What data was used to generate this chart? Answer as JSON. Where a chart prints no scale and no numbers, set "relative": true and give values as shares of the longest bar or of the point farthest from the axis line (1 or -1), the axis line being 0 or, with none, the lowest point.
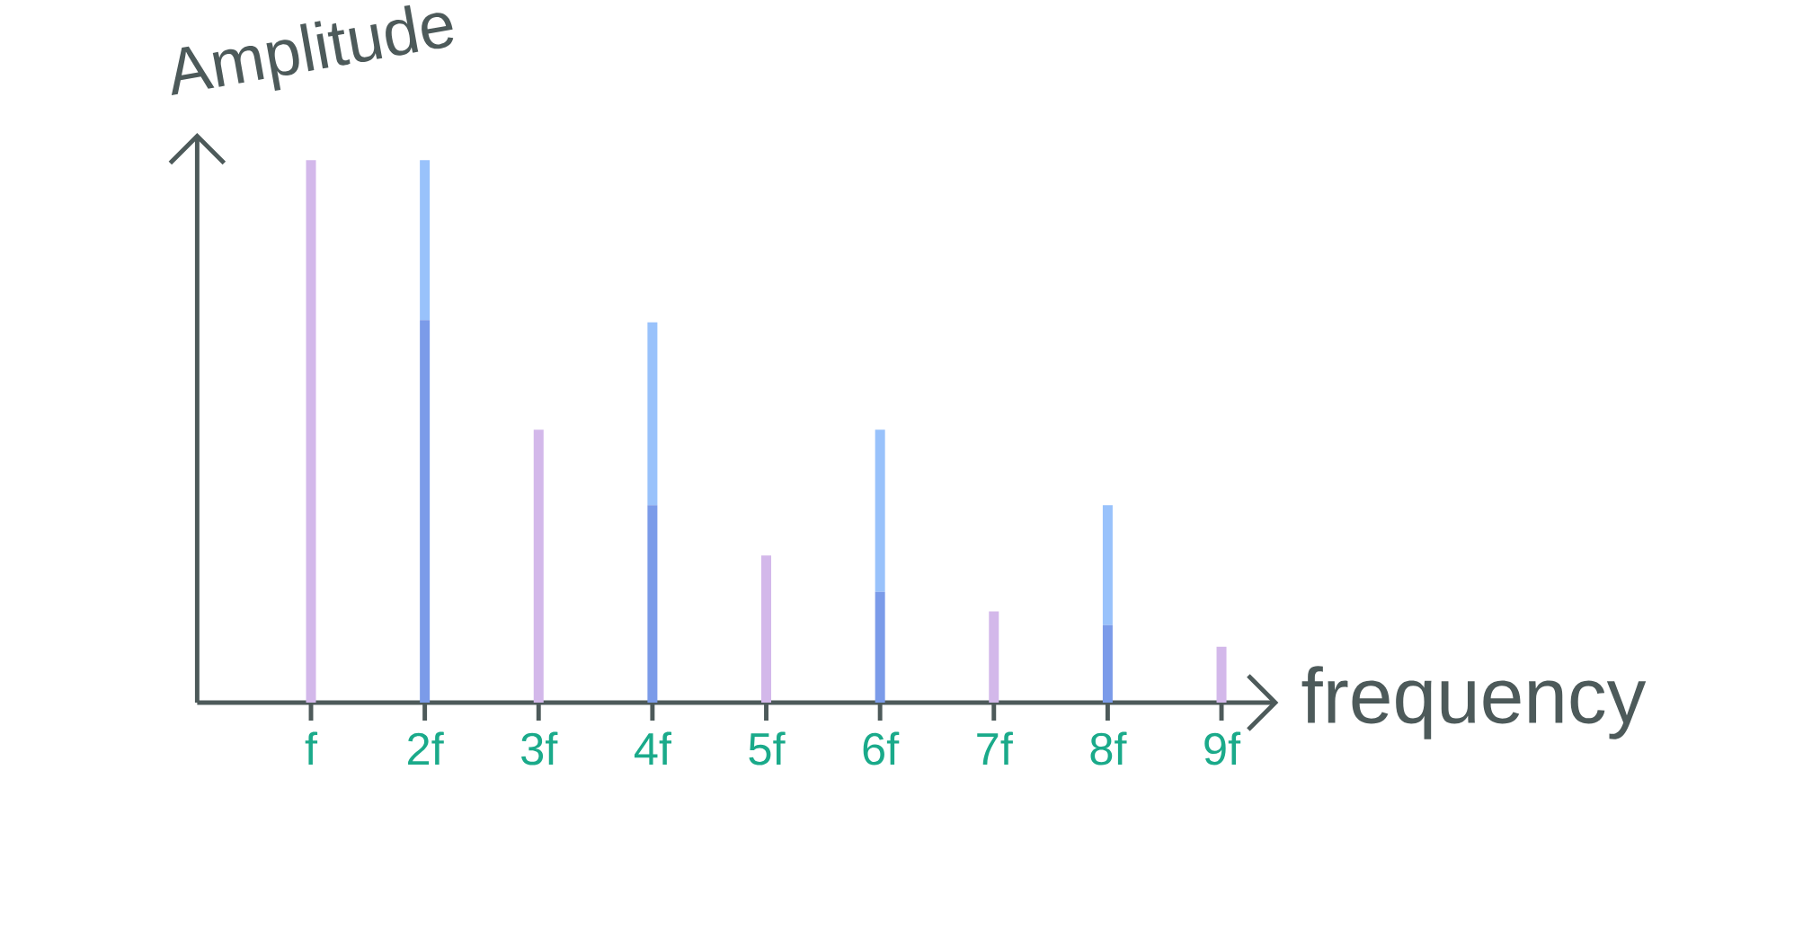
{
  "chart_data": {
    "type": "bar",
    "stacked": true,
    "relative": true,
    "xlabel": "frequency",
    "ylabel": "Amplitude",
    "categories": [
      "f",
      "2f",
      "3f",
      "4f",
      "5f",
      "6f",
      "7f",
      "8f",
      "9f"
    ],
    "series": [
      {
        "color": "#7b9be9",
        "values": [
          null,
          0.705,
          null,
          0.364,
          null,
          0.204,
          null,
          0.143,
          null
        ]
      },
      {
        "color": "#99c2fb",
        "values": [
          null,
          0.295,
          null,
          0.337,
          null,
          0.299,
          null,
          0.221,
          null
        ]
      },
      {
        "color": "#d3b8ea",
        "values": [
          1,
          null,
          0.503,
          null,
          0.271,
          null,
          0.168,
          null,
          0.103
        ]
      }
    ]
  }
}
